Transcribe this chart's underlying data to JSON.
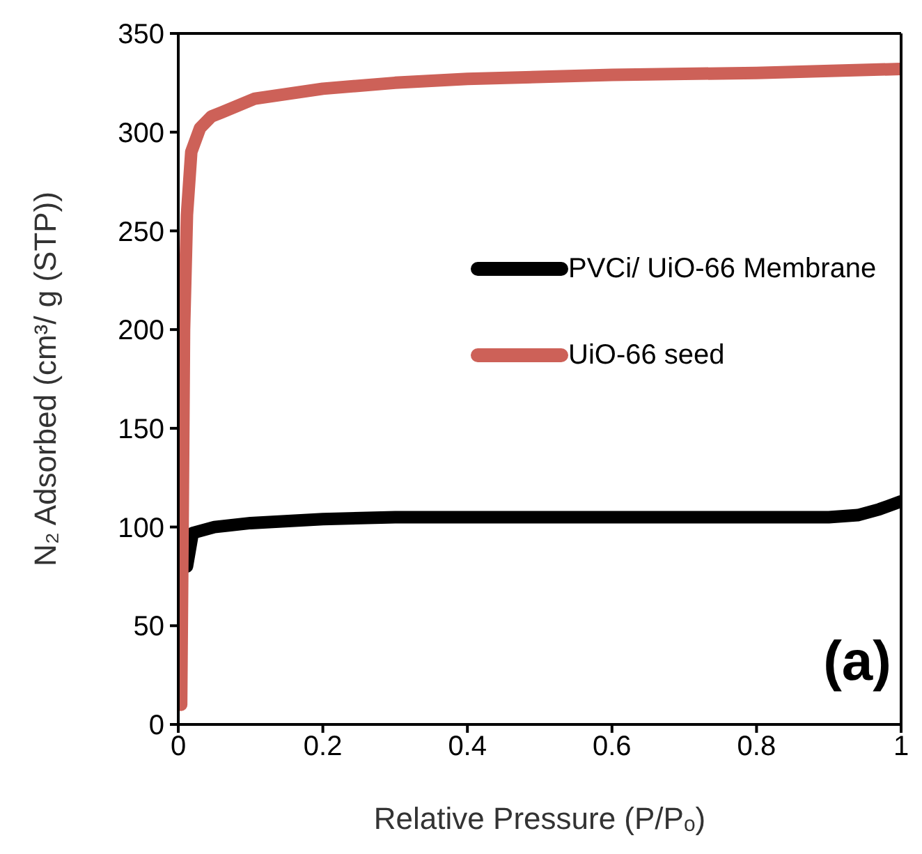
{
  "chart_data": {
    "type": "line",
    "xlabel": "Relative Pressure (P/Pₒ)",
    "ylabel": "N₂ Adsorbed (cm³/ g (STP))",
    "xlim": [
      0,
      1
    ],
    "xticks": [
      0,
      0.2,
      0.4,
      0.6,
      0.8,
      1
    ],
    "ylim": [
      0,
      350
    ],
    "yticks": [
      0,
      50,
      100,
      150,
      200,
      250,
      300,
      350
    ],
    "legend": "right",
    "marker": "none",
    "line_style": "solid",
    "annotations": [
      "(a)"
    ],
    "series": [
      {
        "name": "PVCi/ UiO-66 Membrane",
        "color": "#000000",
        "x": [
          0.012,
          0.02,
          0.05,
          0.1,
          0.2,
          0.3,
          0.4,
          0.5,
          0.6,
          0.7,
          0.8,
          0.9,
          0.94,
          0.97,
          1.0
        ],
        "values": [
          80,
          97,
          100,
          102,
          104,
          105,
          105,
          105,
          105,
          105,
          105,
          105,
          106,
          109,
          113
        ]
      },
      {
        "name": "UiO-66 seed",
        "color": "#cd6158",
        "x": [
          0.004,
          0.006,
          0.008,
          0.012,
          0.018,
          0.03,
          0.046,
          0.06,
          0.106,
          0.2,
          0.3,
          0.4,
          0.6,
          0.8,
          1.0
        ],
        "values": [
          10,
          100,
          200,
          258,
          290,
          302,
          308,
          310,
          317,
          322,
          325,
          327,
          329,
          330,
          332
        ]
      }
    ]
  }
}
